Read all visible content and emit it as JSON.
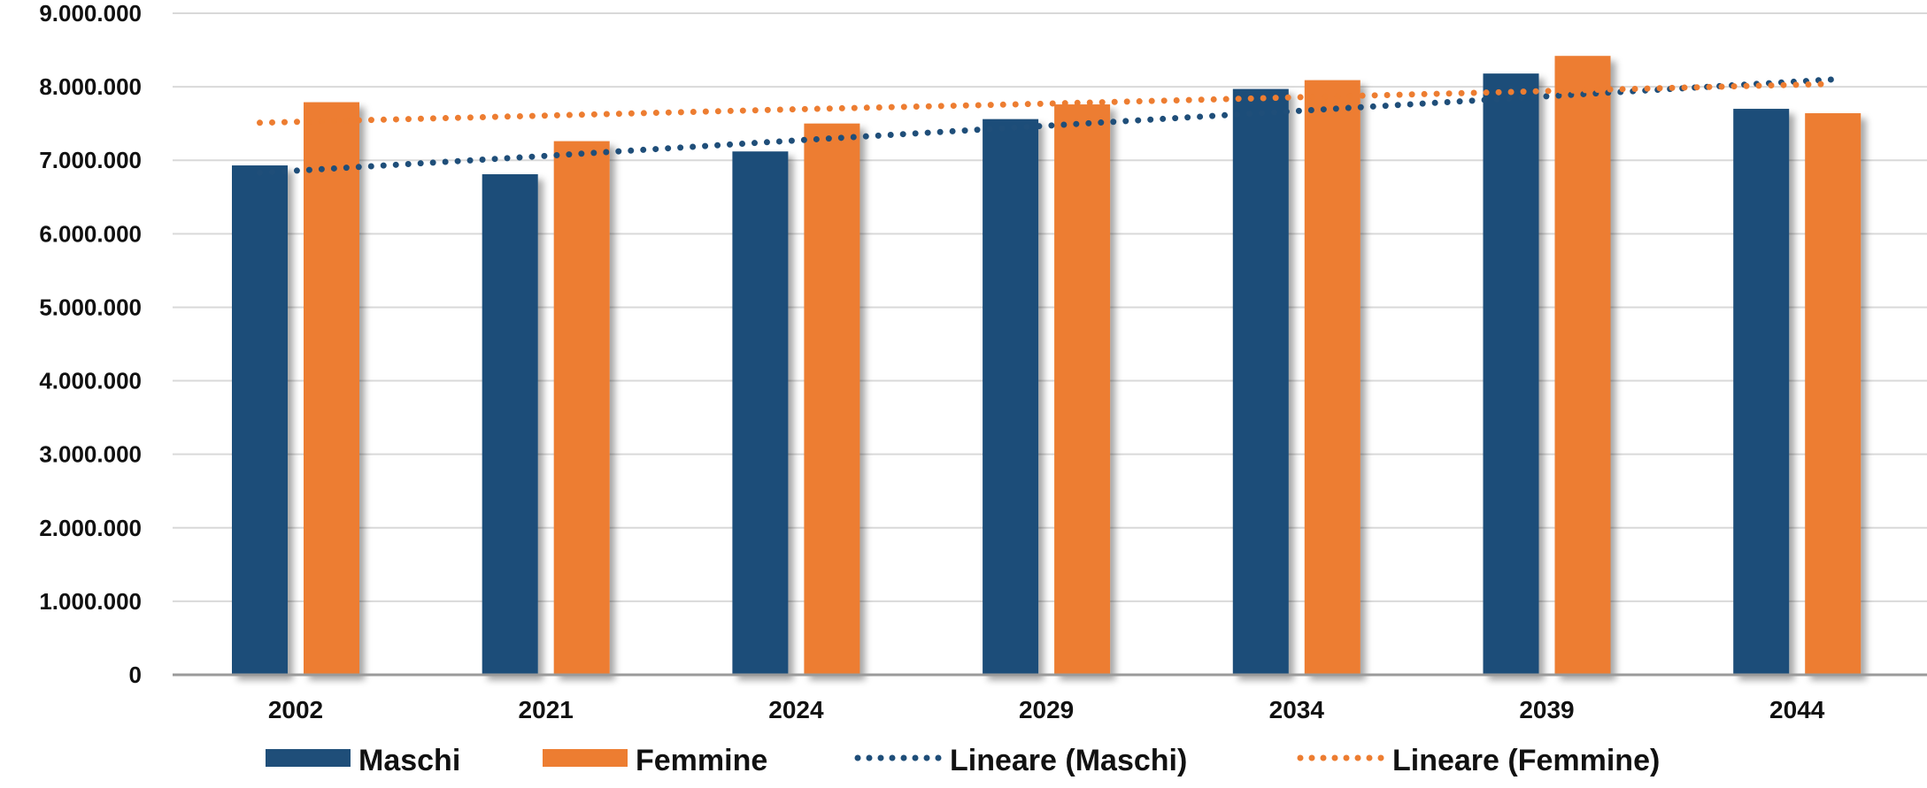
{
  "chart_data": {
    "type": "bar",
    "categories": [
      "2002",
      "2021",
      "2024",
      "2029",
      "2034",
      "2039",
      "2044"
    ],
    "series": [
      {
        "name": "Maschi",
        "kind": "bar",
        "color": "#1F4E79",
        "values": [
          6930000,
          6810000,
          7120000,
          7560000,
          7970000,
          8180000,
          7700000
        ]
      },
      {
        "name": "Femmine",
        "kind": "bar",
        "color": "#ED7D31",
        "values": [
          7790000,
          7260000,
          7500000,
          7760000,
          8090000,
          8420000,
          7640000
        ]
      },
      {
        "name": "Lineare  (Maschi)",
        "kind": "trendline",
        "style": "dotted",
        "color": "#1F4E79",
        "values": [
          6830000,
          7040000,
          7260000,
          7470000,
          7680000,
          7890000,
          8100000
        ]
      },
      {
        "name": "Lineare  (Femmine)",
        "kind": "trendline",
        "style": "dotted",
        "color": "#ED7D31",
        "values": [
          7510000,
          7600000,
          7690000,
          7770000,
          7860000,
          7950000,
          8040000
        ]
      }
    ],
    "yticks": [
      "0",
      "1.000.000",
      "2.000.000",
      "3.000.000",
      "4.000.000",
      "5.000.000",
      "6.000.000",
      "7.000.000",
      "8.000.000",
      "9.000.000"
    ],
    "ylim": [
      0,
      9000000
    ],
    "grid": true,
    "legend": "bottom"
  }
}
